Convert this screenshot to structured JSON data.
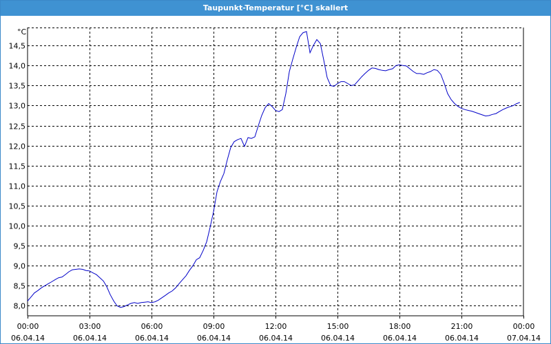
{
  "window": {
    "title": "Taupunkt-Temperatur [°C] skaliert"
  },
  "colors": {
    "titlebar": "#3f92d2",
    "line": "#0000c8",
    "grid": "#000000",
    "background": "#ffffff"
  },
  "chart_data": {
    "type": "line",
    "title": "Taupunkt-Temperatur [°C] skaliert",
    "ylabel": "°C",
    "xlabel": "",
    "ylim": [
      7.75,
      14.95
    ],
    "xlim_hours": [
      0,
      24
    ],
    "grid": true,
    "y_ticks": [
      "8,0",
      "8,5",
      "9,0",
      "9,5",
      "10,0",
      "10,5",
      "11,0",
      "11,5",
      "12,0",
      "12,5",
      "13,0",
      "13,5",
      "14,0",
      "14,5"
    ],
    "y_tick_values": [
      8.0,
      8.5,
      9.0,
      9.5,
      10.0,
      10.5,
      11.0,
      11.5,
      12.0,
      12.5,
      13.0,
      13.5,
      14.0,
      14.5
    ],
    "x_ticks": [
      {
        "time": "00:00",
        "date": "06.04.14"
      },
      {
        "time": "03:00",
        "date": "06.04.14"
      },
      {
        "time": "06:00",
        "date": "06.04.14"
      },
      {
        "time": "09:00",
        "date": "06.04.14"
      },
      {
        "time": "12:00",
        "date": "06.04.14"
      },
      {
        "time": "15:00",
        "date": "06.04.14"
      },
      {
        "time": "18:00",
        "date": "06.04.14"
      },
      {
        "time": "21:00",
        "date": "06.04.14"
      },
      {
        "time": "00:00",
        "date": "07.04.14"
      }
    ],
    "x_tick_hours": [
      0,
      3,
      6,
      9,
      12,
      15,
      18,
      21,
      24
    ],
    "series": [
      {
        "points": [
          [
            0.0,
            8.12
          ],
          [
            0.17,
            8.22
          ],
          [
            0.33,
            8.32
          ],
          [
            0.5,
            8.38
          ],
          [
            0.67,
            8.45
          ],
          [
            0.83,
            8.5
          ],
          [
            1.0,
            8.55
          ],
          [
            1.17,
            8.6
          ],
          [
            1.33,
            8.65
          ],
          [
            1.5,
            8.7
          ],
          [
            1.67,
            8.72
          ],
          [
            1.83,
            8.78
          ],
          [
            2.0,
            8.85
          ],
          [
            2.17,
            8.9
          ],
          [
            2.33,
            8.91
          ],
          [
            2.5,
            8.92
          ],
          [
            2.67,
            8.91
          ],
          [
            2.83,
            8.88
          ],
          [
            3.0,
            8.87
          ],
          [
            3.17,
            8.82
          ],
          [
            3.33,
            8.78
          ],
          [
            3.5,
            8.7
          ],
          [
            3.67,
            8.62
          ],
          [
            3.83,
            8.48
          ],
          [
            4.0,
            8.28
          ],
          [
            4.17,
            8.12
          ],
          [
            4.33,
            8.0
          ],
          [
            4.5,
            7.96
          ],
          [
            4.67,
            7.98
          ],
          [
            4.83,
            8.02
          ],
          [
            5.0,
            8.06
          ],
          [
            5.17,
            8.08
          ],
          [
            5.33,
            8.06
          ],
          [
            5.5,
            8.08
          ],
          [
            5.67,
            8.09
          ],
          [
            5.83,
            8.1
          ],
          [
            6.0,
            8.08
          ],
          [
            6.17,
            8.1
          ],
          [
            6.33,
            8.14
          ],
          [
            6.5,
            8.2
          ],
          [
            6.67,
            8.26
          ],
          [
            6.83,
            8.32
          ],
          [
            7.0,
            8.37
          ],
          [
            7.17,
            8.45
          ],
          [
            7.33,
            8.55
          ],
          [
            7.5,
            8.65
          ],
          [
            7.67,
            8.75
          ],
          [
            7.83,
            8.88
          ],
          [
            8.0,
            9.0
          ],
          [
            8.17,
            9.15
          ],
          [
            8.33,
            9.2
          ],
          [
            8.5,
            9.38
          ],
          [
            8.67,
            9.6
          ],
          [
            8.83,
            9.95
          ],
          [
            9.0,
            10.35
          ],
          [
            9.17,
            10.85
          ],
          [
            9.33,
            11.1
          ],
          [
            9.5,
            11.3
          ],
          [
            9.67,
            11.65
          ],
          [
            9.83,
            11.95
          ],
          [
            10.0,
            12.1
          ],
          [
            10.17,
            12.15
          ],
          [
            10.33,
            12.18
          ],
          [
            10.5,
            11.98
          ],
          [
            10.67,
            12.2
          ],
          [
            10.83,
            12.18
          ],
          [
            11.0,
            12.22
          ],
          [
            11.17,
            12.5
          ],
          [
            11.33,
            12.75
          ],
          [
            11.5,
            12.95
          ],
          [
            11.67,
            13.05
          ],
          [
            11.83,
            12.98
          ],
          [
            12.0,
            12.88
          ],
          [
            12.17,
            12.85
          ],
          [
            12.33,
            12.9
          ],
          [
            12.5,
            13.3
          ],
          [
            12.67,
            13.85
          ],
          [
            12.83,
            14.15
          ],
          [
            13.0,
            14.45
          ],
          [
            13.17,
            14.72
          ],
          [
            13.33,
            14.82
          ],
          [
            13.5,
            14.85
          ],
          [
            13.67,
            14.32
          ],
          [
            13.83,
            14.5
          ],
          [
            14.0,
            14.65
          ],
          [
            14.17,
            14.55
          ],
          [
            14.33,
            14.15
          ],
          [
            14.5,
            13.7
          ],
          [
            14.67,
            13.5
          ],
          [
            14.83,
            13.48
          ],
          [
            15.0,
            13.55
          ],
          [
            15.17,
            13.6
          ],
          [
            15.33,
            13.6
          ],
          [
            15.5,
            13.55
          ],
          [
            15.67,
            13.5
          ],
          [
            15.83,
            13.52
          ],
          [
            16.0,
            13.62
          ],
          [
            16.17,
            13.72
          ],
          [
            16.33,
            13.8
          ],
          [
            16.5,
            13.88
          ],
          [
            16.67,
            13.94
          ],
          [
            16.83,
            13.93
          ],
          [
            17.0,
            13.9
          ],
          [
            17.17,
            13.88
          ],
          [
            17.33,
            13.87
          ],
          [
            17.5,
            13.9
          ],
          [
            17.67,
            13.92
          ],
          [
            17.83,
            14.0
          ],
          [
            18.0,
            14.02
          ],
          [
            18.17,
            14.0
          ],
          [
            18.33,
            13.99
          ],
          [
            18.5,
            13.92
          ],
          [
            18.67,
            13.85
          ],
          [
            18.83,
            13.8
          ],
          [
            19.0,
            13.8
          ],
          [
            19.17,
            13.78
          ],
          [
            19.33,
            13.82
          ],
          [
            19.5,
            13.85
          ],
          [
            19.67,
            13.9
          ],
          [
            19.83,
            13.88
          ],
          [
            20.0,
            13.78
          ],
          [
            20.17,
            13.55
          ],
          [
            20.33,
            13.3
          ],
          [
            20.5,
            13.15
          ],
          [
            20.67,
            13.05
          ],
          [
            20.83,
            12.98
          ],
          [
            21.0,
            12.93
          ],
          [
            21.17,
            12.9
          ],
          [
            21.33,
            12.88
          ],
          [
            21.5,
            12.86
          ],
          [
            21.67,
            12.83
          ],
          [
            21.83,
            12.8
          ],
          [
            22.0,
            12.77
          ],
          [
            22.17,
            12.74
          ],
          [
            22.33,
            12.75
          ],
          [
            22.5,
            12.78
          ],
          [
            22.67,
            12.8
          ],
          [
            22.83,
            12.85
          ],
          [
            23.0,
            12.9
          ],
          [
            23.17,
            12.94
          ],
          [
            23.33,
            12.97
          ],
          [
            23.5,
            13.0
          ],
          [
            23.67,
            13.05
          ],
          [
            23.83,
            13.08
          ],
          [
            24.0,
            13.1
          ],
          [
            24.17,
            13.12
          ],
          [
            24.33,
            13.13
          ],
          [
            24.5,
            13.12
          ]
        ]
      }
    ]
  }
}
